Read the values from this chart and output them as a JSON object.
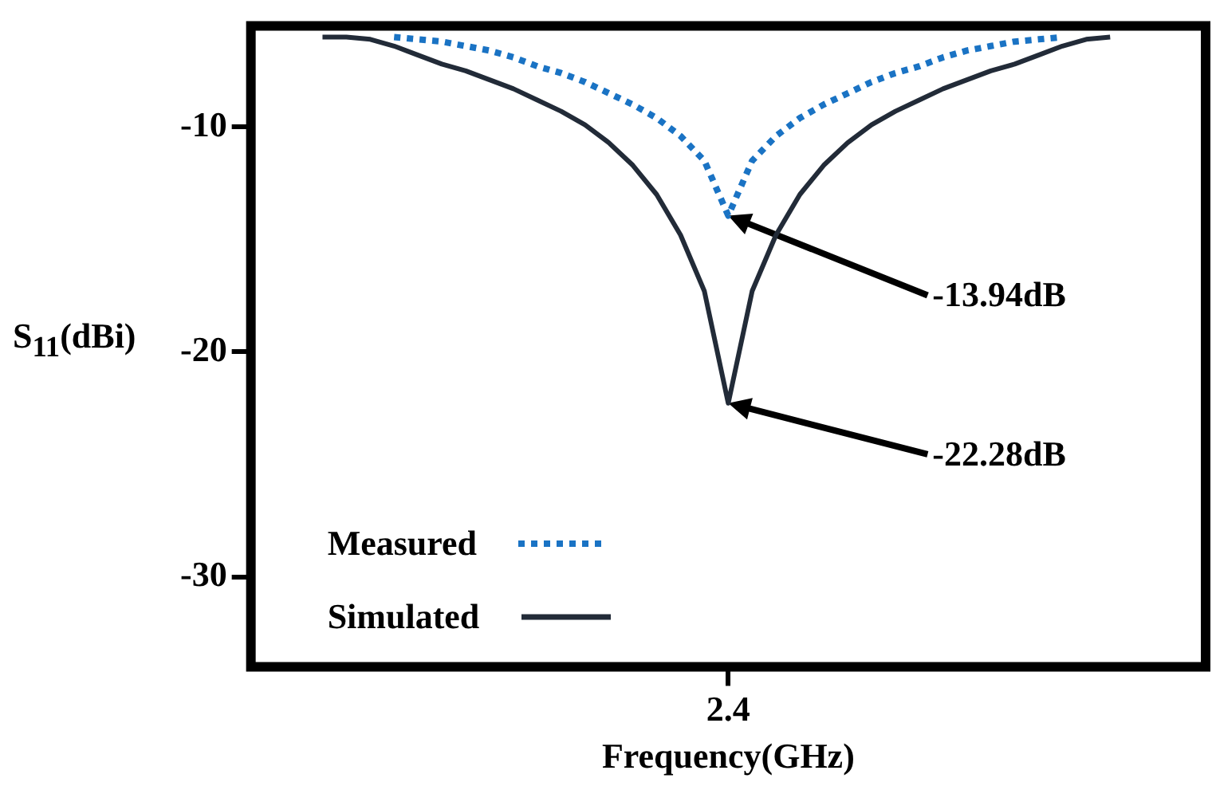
{
  "chart_data": {
    "type": "line",
    "xlabel": "Frequency(GHz)",
    "ylabel": "S$_{11}$(dBi)",
    "categories": [
      null,
      null,
      null,
      null,
      null,
      null,
      null,
      null,
      null,
      null,
      null,
      null,
      null,
      null,
      null,
      null,
      null,
      null,
      null,
      null,
      "2.4",
      null,
      null,
      null,
      null,
      null,
      null,
      null,
      null,
      null,
      null,
      null,
      null,
      null,
      null,
      null,
      null,
      null,
      null,
      null,
      null
    ],
    "series": [
      {
        "name": "Measured",
        "color": "#1a73c4",
        "line_style": "dotted",
        "values": [
          null,
          null,
          null,
          null,
          null,
          null,
          -6,
          -6.1,
          -6.2,
          -6.4,
          -6.6,
          -6.9,
          -7.3,
          -7.6,
          -8,
          -8.5,
          -9,
          -9.6,
          -10.4,
          -11.5,
          -13.94,
          -11.5,
          -10.4,
          -9.6,
          -9,
          -8.5,
          -8,
          -7.6,
          -7.3,
          -6.9,
          -6.6,
          -6.4,
          -6.2,
          -6.1,
          -6,
          null,
          null,
          null,
          null,
          null,
          null
        ]
      },
      {
        "name": "Simulated",
        "color": "#222b38",
        "line_style": "solid",
        "values": [
          null,
          null,
          null,
          -6,
          -6,
          -6.1,
          -6.4,
          -6.8,
          -7.2,
          -7.5,
          -7.9,
          -8.3,
          -8.8,
          -9.3,
          -9.9,
          -10.7,
          -11.7,
          -13,
          -14.8,
          -17.3,
          -22.28,
          -17.3,
          -14.8,
          -13,
          -11.7,
          -10.7,
          -9.9,
          -9.3,
          -8.8,
          -8.3,
          -7.9,
          -7.5,
          -7.2,
          -6.8,
          -6.4,
          -6.1,
          -6,
          null,
          null,
          null,
          null
        ]
      }
    ],
    "ylim": [
      -34,
      -5.5
    ],
    "yticks": [
      -10,
      -20,
      -30
    ],
    "grid": false,
    "legend": "bottom left",
    "annotations": [
      "-13.94dB",
      "-22.28dB"
    ]
  }
}
